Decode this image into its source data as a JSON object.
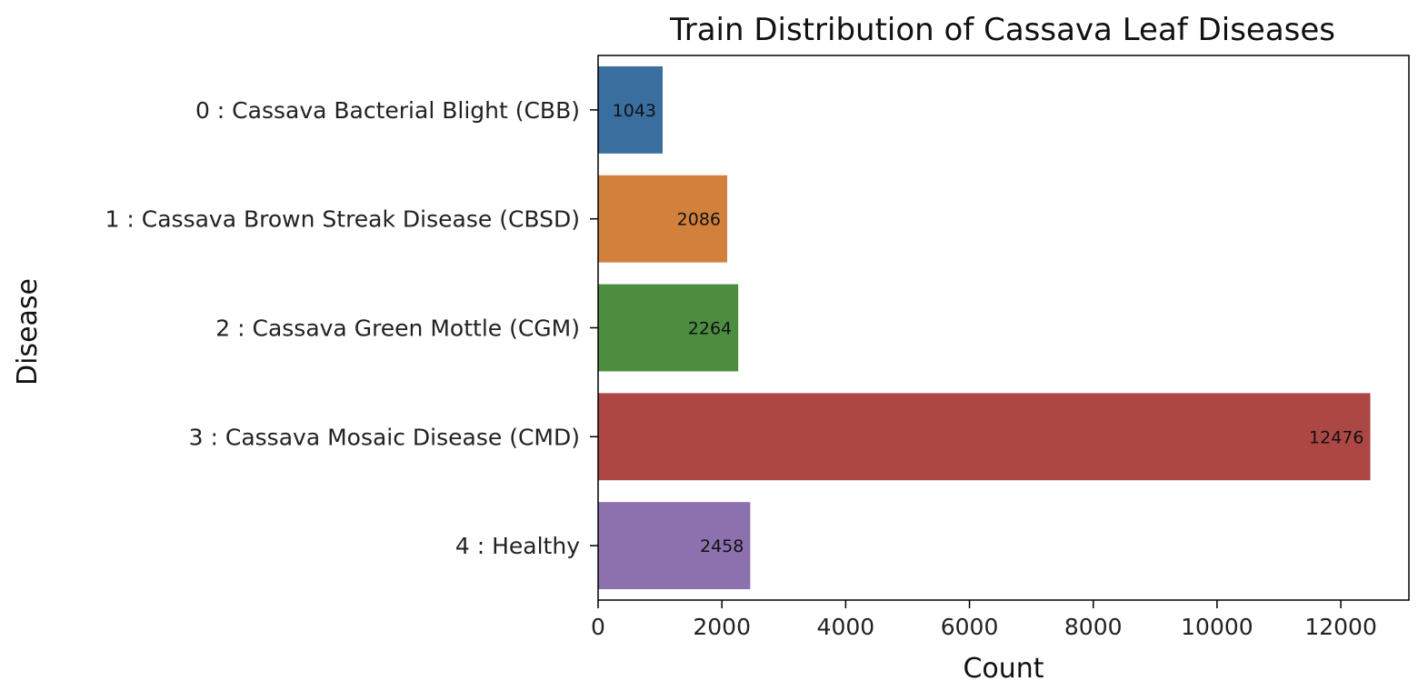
{
  "chart_data": {
    "type": "bar",
    "orientation": "horizontal",
    "title": "Train Distribution of Cassava Leaf Diseases",
    "xlabel": "Count",
    "ylabel": "Disease",
    "categories": [
      "0 : Cassava Bacterial Blight (CBB)",
      "1 : Cassava Brown Streak Disease (CBSD)",
      "2 : Cassava Green Mottle (CGM)",
      "3 : Cassava Mosaic Disease (CMD)",
      "4 : Healthy"
    ],
    "values": [
      1043,
      2086,
      2264,
      12476,
      2458
    ],
    "value_labels": [
      "1043",
      "2086",
      "2264",
      "12476",
      "2458"
    ],
    "colors": [
      "#3a6e9e",
      "#d2813d",
      "#4c8d40",
      "#ad4744",
      "#8c71ae"
    ],
    "xlim": [
      0,
      13100
    ],
    "xticks": [
      0,
      2000,
      4000,
      6000,
      8000,
      10000,
      12000
    ],
    "xtick_labels": [
      "0",
      "2000",
      "4000",
      "6000",
      "8000",
      "10000",
      "12000"
    ],
    "grid": false,
    "legend": "none"
  }
}
